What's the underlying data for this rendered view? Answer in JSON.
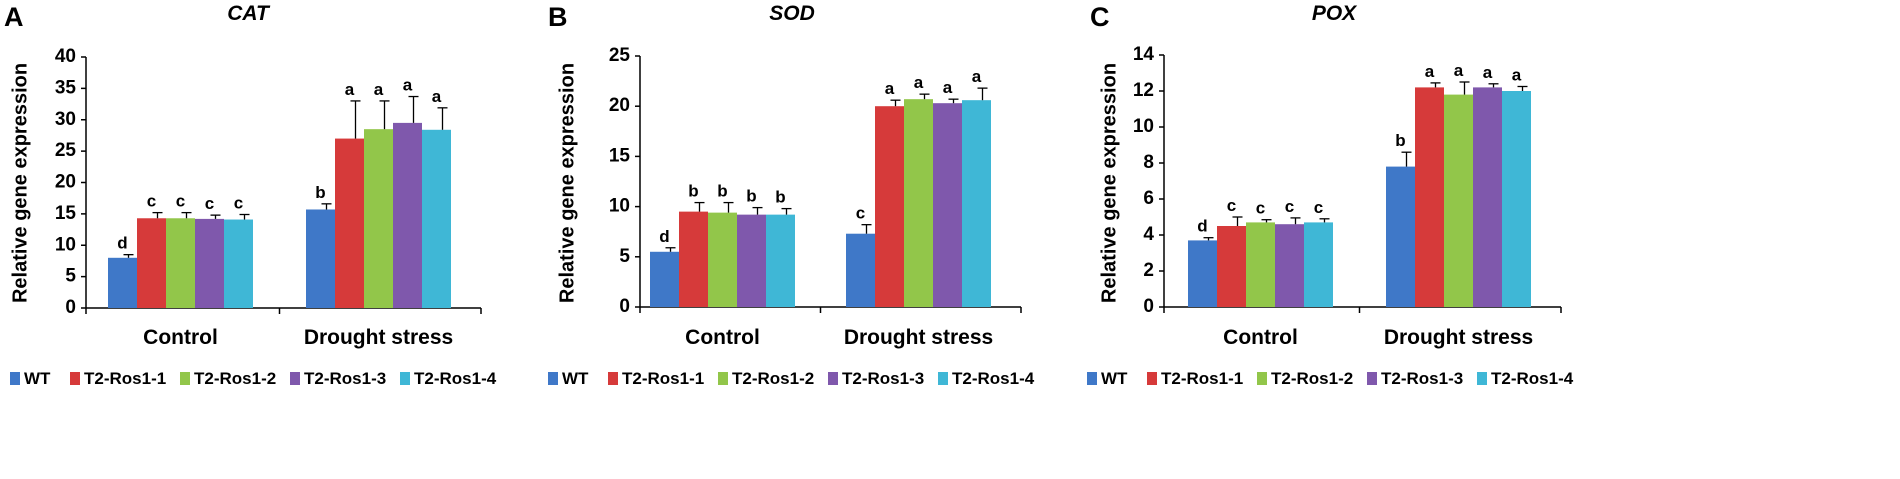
{
  "legend": [
    {
      "name": "WT",
      "color": "#3F78C8"
    },
    {
      "name": "T2-Ros1-1",
      "color": "#D63A3A"
    },
    {
      "name": "T2-Ros1-2",
      "color": "#92C64A"
    },
    {
      "name": "T2-Ros1-3",
      "color": "#7F58AC"
    },
    {
      "name": "T2-Ros1-4",
      "color": "#3FB7D6"
    }
  ],
  "chart_data": [
    {
      "type": "bar",
      "panel": "A",
      "title": "CAT",
      "ylabel": "Relative gene expression",
      "xlabel": "",
      "categories": [
        "Control",
        "Drought stress"
      ],
      "ylim": [
        0,
        40
      ],
      "yticks": [
        0,
        5,
        10,
        15,
        20,
        25,
        30,
        35,
        40
      ],
      "series": [
        {
          "name": "WT",
          "values": [
            8.0,
            15.7
          ],
          "errors": [
            0.5,
            0.9
          ],
          "labels": [
            "d",
            "b"
          ]
        },
        {
          "name": "T2-Ros1-1",
          "values": [
            14.3,
            27.0
          ],
          "errors": [
            0.9,
            6.0
          ],
          "labels": [
            "c",
            "a"
          ]
        },
        {
          "name": "T2-Ros1-2",
          "values": [
            14.3,
            28.5
          ],
          "errors": [
            0.9,
            4.5
          ],
          "labels": [
            "c",
            "a"
          ]
        },
        {
          "name": "T2-Ros1-3",
          "values": [
            14.2,
            29.5
          ],
          "errors": [
            0.6,
            4.2
          ],
          "labels": [
            "c",
            "a"
          ]
        },
        {
          "name": "T2-Ros1-4",
          "values": [
            14.1,
            28.4
          ],
          "errors": [
            0.8,
            3.5
          ],
          "labels": [
            "c",
            "a"
          ]
        }
      ]
    },
    {
      "type": "bar",
      "panel": "B",
      "title": "SOD",
      "ylabel": "Relative gene expression",
      "xlabel": "",
      "categories": [
        "Control",
        "Drought stress"
      ],
      "ylim": [
        0,
        25
      ],
      "yticks": [
        0,
        5,
        10,
        15,
        20,
        25
      ],
      "series": [
        {
          "name": "WT",
          "values": [
            5.5,
            7.3
          ],
          "errors": [
            0.4,
            0.9
          ],
          "labels": [
            "d",
            "c"
          ]
        },
        {
          "name": "T2-Ros1-1",
          "values": [
            9.5,
            20.0
          ],
          "errors": [
            0.9,
            0.6
          ],
          "labels": [
            "b",
            "a"
          ]
        },
        {
          "name": "T2-Ros1-2",
          "values": [
            9.4,
            20.7
          ],
          "errors": [
            1.0,
            0.5
          ],
          "labels": [
            "b",
            "a"
          ]
        },
        {
          "name": "T2-Ros1-3",
          "values": [
            9.2,
            20.3
          ],
          "errors": [
            0.7,
            0.4
          ],
          "labels": [
            "b",
            "a"
          ]
        },
        {
          "name": "T2-Ros1-4",
          "values": [
            9.2,
            20.6
          ],
          "errors": [
            0.6,
            1.2
          ],
          "labels": [
            "b",
            "a"
          ]
        }
      ]
    },
    {
      "type": "bar",
      "panel": "C",
      "title": "POX",
      "ylabel": "Relative gene expression",
      "xlabel": "",
      "categories": [
        "Control",
        "Drought stress"
      ],
      "ylim": [
        0,
        14
      ],
      "yticks": [
        0,
        2,
        4,
        6,
        8,
        10,
        12,
        14
      ],
      "series": [
        {
          "name": "WT",
          "values": [
            3.7,
            7.8
          ],
          "errors": [
            0.15,
            0.8
          ],
          "labels": [
            "d",
            "b"
          ]
        },
        {
          "name": "T2-Ros1-1",
          "values": [
            4.5,
            12.2
          ],
          "errors": [
            0.5,
            0.25
          ],
          "labels": [
            "c",
            "a"
          ]
        },
        {
          "name": "T2-Ros1-2",
          "values": [
            4.7,
            11.8
          ],
          "errors": [
            0.15,
            0.7
          ],
          "labels": [
            "c",
            "a"
          ]
        },
        {
          "name": "T2-Ros1-3",
          "values": [
            4.6,
            12.2
          ],
          "errors": [
            0.35,
            0.2
          ],
          "labels": [
            "c",
            "a"
          ]
        },
        {
          "name": "T2-Ros1-4",
          "values": [
            4.7,
            12.0
          ],
          "errors": [
            0.2,
            0.25
          ],
          "labels": [
            "c",
            "a"
          ]
        }
      ]
    }
  ]
}
